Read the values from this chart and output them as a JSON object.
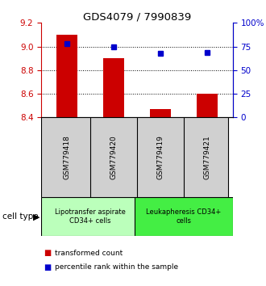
{
  "title": "GDS4079 / 7990839",
  "samples": [
    "GSM779418",
    "GSM779420",
    "GSM779419",
    "GSM779421"
  ],
  "transformed_counts": [
    9.1,
    8.9,
    8.47,
    8.6
  ],
  "percentile_ranks": [
    78,
    75,
    68,
    69
  ],
  "ylim_left": [
    8.4,
    9.2
  ],
  "ylim_right": [
    0,
    100
  ],
  "yticks_left": [
    8.4,
    8.6,
    8.8,
    9.0,
    9.2
  ],
  "yticks_right": [
    0,
    25,
    50,
    75,
    100
  ],
  "ytick_labels_right": [
    "0",
    "25",
    "50",
    "75",
    "100%"
  ],
  "bar_color": "#cc0000",
  "dot_color": "#0000cc",
  "cell_types": [
    {
      "label": "Lipotransfer aspirate\nCD34+ cells",
      "color": "#bbffbb",
      "samples": [
        0,
        1
      ]
    },
    {
      "label": "Leukapheresis CD34+\ncells",
      "color": "#44ee44",
      "samples": [
        2,
        3
      ]
    }
  ],
  "cell_type_label": "cell type",
  "legend_items": [
    {
      "color": "#cc0000",
      "label": "transformed count"
    },
    {
      "color": "#0000cc",
      "label": "percentile rank within the sample"
    }
  ],
  "bar_width": 0.45,
  "tick_color_left": "#cc0000",
  "tick_color_right": "#0000cc"
}
